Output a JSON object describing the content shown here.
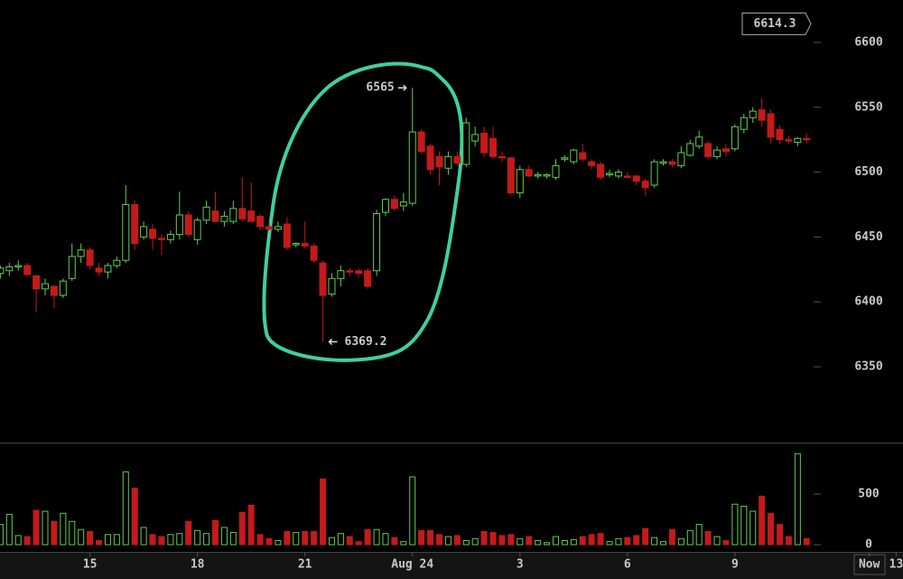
{
  "chart_data": {
    "type": "candlestick",
    "x": [
      12.5,
      12.75,
      13,
      13.25,
      13.5,
      13.75,
      14,
      14.25,
      14.5,
      14.75,
      15,
      15.25,
      15.5,
      15.75,
      16,
      16.25,
      16.5,
      16.75,
      17,
      17.25,
      17.5,
      17.75,
      18,
      18.25,
      18.5,
      18.75,
      19,
      19.25,
      19.5,
      19.75,
      20,
      20.25,
      20.5,
      20.75,
      21,
      21.25,
      21.5,
      21.75,
      22,
      22.25,
      22.5,
      22.75,
      23,
      23.25,
      23.5,
      23.75,
      24,
      24.25,
      24.5,
      24.75,
      25,
      25.25,
      25.5,
      25.75,
      26,
      26.25,
      26.5,
      26.75,
      27,
      27.25,
      27.5,
      27.75,
      28,
      28.25,
      28.5,
      28.75,
      29,
      29.25,
      29.5,
      29.75,
      30,
      30.25,
      30.5,
      30.75,
      31,
      31.25,
      31.5,
      31.75,
      32,
      32.25,
      32.5,
      32.75,
      33,
      33.25,
      33.5,
      33.75,
      34,
      34.25,
      34.5,
      34.75,
      35
    ],
    "open": [
      6422,
      6424,
      6427,
      6428,
      6420,
      6410,
      6412,
      6405,
      6418,
      6435,
      6440,
      6426,
      6423,
      6428,
      6432,
      6475,
      6450,
      6456,
      6449,
      6448,
      6452,
      6467,
      6448,
      6463,
      6470,
      6462,
      6462,
      6472,
      6470,
      6466,
      6458,
      6456,
      6460,
      6444,
      6445,
      6443,
      6430,
      6406,
      6418,
      6424,
      6424,
      6424,
      6424,
      6469,
      6479,
      6474,
      6476,
      6531,
      6520,
      6512,
      6503,
      6512,
      6506,
      6524,
      6530,
      6526,
      6512,
      6511,
      6484,
      6502,
      6497,
      6497,
      6496,
      6510,
      6508,
      6515,
      6508,
      6506,
      6498,
      6497,
      6497,
      6497,
      6493,
      6490,
      6507,
      6508,
      6505,
      6513,
      6520,
      6522,
      6512,
      6518,
      6518,
      6533,
      6542,
      6548,
      6545,
      6533,
      6525,
      6523,
      6526
    ],
    "high": [
      6428,
      6430,
      6432,
      6430,
      6421,
      6418,
      6413,
      6418,
      6445,
      6445,
      6442,
      6430,
      6430,
      6435,
      6490,
      6478,
      6462,
      6460,
      6452,
      6455,
      6485,
      6470,
      6465,
      6478,
      6485,
      6470,
      6478,
      6496,
      6492,
      6468,
      6462,
      6462,
      6465,
      6446,
      6462,
      6445,
      6432,
      6422,
      6428,
      6426,
      6426,
      6426,
      6471,
      6480,
      6482,
      6484,
      6565,
      6533,
      6522,
      6516,
      6516,
      6516,
      6542,
      6535,
      6535,
      6535,
      6516,
      6512,
      6505,
      6505,
      6500,
      6499,
      6510,
      6513,
      6518,
      6522,
      6510,
      6508,
      6502,
      6502,
      6500,
      6498,
      6495,
      6510,
      6510,
      6510,
      6520,
      6525,
      6532,
      6524,
      6520,
      6522,
      6537,
      6545,
      6550,
      6557,
      6548,
      6536,
      6528,
      6527,
      6530
    ],
    "low": [
      6418,
      6420,
      6424,
      6420,
      6392,
      6405,
      6395,
      6403,
      6416,
      6430,
      6425,
      6420,
      6418,
      6426,
      6430,
      6440,
      6448,
      6440,
      6436,
      6445,
      6448,
      6450,
      6444,
      6460,
      6463,
      6458,
      6460,
      6462,
      6465,
      6455,
      6455,
      6454,
      6440,
      6442,
      6441,
      6430,
      6369.2,
      6404,
      6412,
      6420,
      6419,
      6410,
      6420,
      6466,
      6470,
      6470,
      6474,
      6514,
      6498,
      6490,
      6498,
      6505,
      6504,
      6520,
      6512,
      6510,
      6508,
      6482,
      6480,
      6496,
      6495,
      6495,
      6494,
      6508,
      6506,
      6508,
      6502,
      6494,
      6496,
      6495,
      6495,
      6490,
      6482,
      6488,
      6505,
      6504,
      6503,
      6512,
      6518,
      6510,
      6510,
      6512,
      6516,
      6530,
      6538,
      6535,
      6522,
      6522,
      6522,
      6520,
      6522
    ],
    "close": [
      6426,
      6427,
      6428,
      6421,
      6410,
      6414,
      6405,
      6416,
      6435,
      6440,
      6428,
      6423,
      6428,
      6432,
      6475,
      6445,
      6458,
      6449,
      6448,
      6452,
      6467,
      6452,
      6463,
      6473,
      6462,
      6466,
      6472,
      6464,
      6462,
      6458,
      6456,
      6458,
      6442,
      6445,
      6443,
      6432,
      6405,
      6418,
      6424,
      6423,
      6422,
      6412,
      6468,
      6479,
      6472,
      6477,
      6531,
      6516,
      6502,
      6504,
      6512,
      6507,
      6538,
      6529,
      6515,
      6512,
      6511,
      6484,
      6502,
      6497,
      6498,
      6498,
      6505,
      6511,
      6517,
      6510,
      6505,
      6496,
      6499,
      6500,
      6496,
      6493,
      6488,
      6508,
      6508,
      6506,
      6515,
      6522,
      6527,
      6512,
      6517,
      6516,
      6535,
      6542,
      6547,
      6540,
      6527,
      6525,
      6524,
      6526,
      6525
    ],
    "volume": [
      200,
      300,
      90,
      80,
      340,
      330,
      230,
      310,
      230,
      150,
      130,
      40,
      100,
      100,
      720,
      560,
      170,
      100,
      80,
      100,
      110,
      230,
      140,
      110,
      240,
      170,
      120,
      320,
      390,
      100,
      60,
      40,
      130,
      120,
      130,
      130,
      650,
      70,
      110,
      80,
      30,
      150,
      150,
      110,
      70,
      30,
      670,
      140,
      140,
      100,
      80,
      90,
      40,
      60,
      130,
      120,
      90,
      100,
      60,
      80,
      40,
      20,
      80,
      40,
      50,
      80,
      100,
      110,
      30,
      60,
      70,
      90,
      160,
      70,
      30,
      150,
      60,
      140,
      200,
      130,
      80,
      40,
      400,
      380,
      330,
      480,
      310,
      200,
      80,
      900,
      60
    ],
    "up_color": "#5fcf4e",
    "down_color": "#c41a1a",
    "last_price": 6614.3,
    "xlim": [
      12.49,
      37.69
    ],
    "xticks": [
      15,
      18,
      21,
      {
        "value": 24,
        "label": "Aug 24"
      },
      {
        "value": 27,
        "label": "3"
      },
      {
        "value": 30,
        "label": "6"
      },
      {
        "value": 33,
        "label": "9"
      },
      {
        "value": 36.75,
        "label": "Now"
      },
      {
        "value": 37.5,
        "label": "13"
      }
    ],
    "ylim": [
      6291.5,
      6632.7
    ],
    "yticks": [
      6350,
      6400,
      6450,
      6500,
      6550,
      6600
    ],
    "volume_ylim": [
      0,
      960
    ],
    "volume_ticks": [
      0,
      500
    ]
  }
}
